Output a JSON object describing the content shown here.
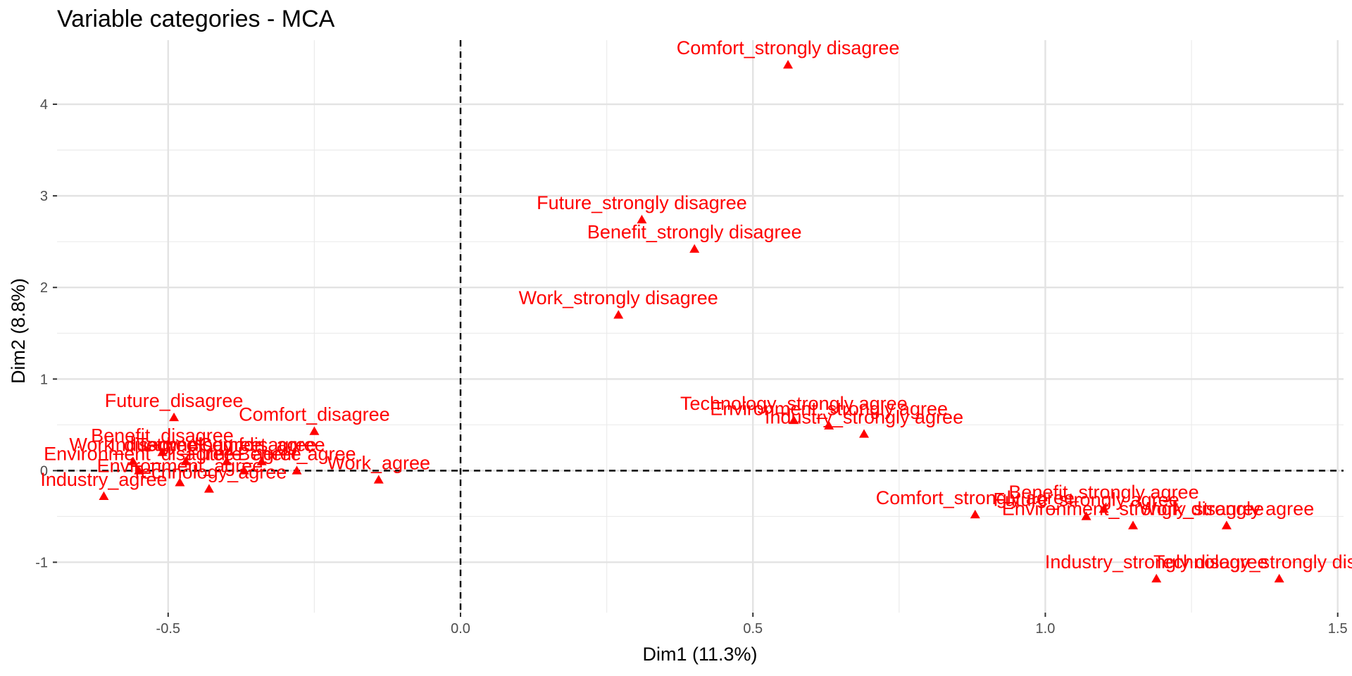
{
  "chart_data": {
    "type": "scatter",
    "title": "Variable categories - MCA",
    "xlabel": "Dim1 (11.3%)",
    "ylabel": "Dim2 (8.8%)",
    "xlim": [
      -0.69,
      1.51
    ],
    "ylim": [
      -1.55,
      4.7
    ],
    "x_major_ticks": [
      -0.5,
      0.0,
      0.5,
      1.0,
      1.5
    ],
    "x_tick_labels": [
      "-0.5",
      "0.0",
      "0.5",
      "1.0",
      "1.5"
    ],
    "x_minor_ticks": [
      -0.25,
      0.25,
      0.75,
      1.25
    ],
    "y_major_ticks": [
      -1,
      0,
      1,
      2,
      3,
      4
    ],
    "y_tick_labels": [
      "-1",
      "0",
      "1",
      "2",
      "3",
      "4"
    ],
    "y_minor_ticks": [
      -0.5,
      0.5,
      1.5,
      2.5,
      3.5
    ],
    "reference_lines": {
      "x": 0,
      "y": 0,
      "style": "dashed"
    },
    "marker": "triangle",
    "color": "#ff0000",
    "points": [
      {
        "label": "Comfort_strongly disagree",
        "x": 0.56,
        "y": 4.43
      },
      {
        "label": "Future_strongly disagree",
        "x": 0.31,
        "y": 2.74
      },
      {
        "label": "Benefit_strongly disagree",
        "x": 0.4,
        "y": 2.42
      },
      {
        "label": "Work_strongly disagree",
        "x": 0.27,
        "y": 1.7
      },
      {
        "label": "Future_disagree",
        "x": -0.49,
        "y": 0.58
      },
      {
        "label": "Comfort_disagree",
        "x": -0.25,
        "y": 0.43
      },
      {
        "label": "Benefit_disagree",
        "x": -0.51,
        "y": 0.2
      },
      {
        "label": "Work_disagree",
        "x": -0.56,
        "y": 0.1
      },
      {
        "label": "Industry_disagree",
        "x": -0.47,
        "y": 0.1
      },
      {
        "label": "Technology_disagree",
        "x": -0.4,
        "y": 0.1
      },
      {
        "label": "Comfort_agree",
        "x": -0.34,
        "y": 0.1
      },
      {
        "label": "Environment_disagree",
        "x": -0.55,
        "y": 0.0
      },
      {
        "label": "Future_agree",
        "x": -0.37,
        "y": 0.0
      },
      {
        "label": "Benefit_agree",
        "x": -0.28,
        "y": 0.0
      },
      {
        "label": "Work_agree",
        "x": -0.14,
        "y": -0.1
      },
      {
        "label": "Environment_agree",
        "x": -0.48,
        "y": -0.13
      },
      {
        "label": "Industry_agree",
        "x": -0.61,
        "y": -0.28
      },
      {
        "label": "Technology_agree",
        "x": -0.43,
        "y": -0.2
      },
      {
        "label": "Technology_strongly agree",
        "x": 0.57,
        "y": 0.55
      },
      {
        "label": "Environment_strongly agree",
        "x": 0.63,
        "y": 0.49
      },
      {
        "label": "Industry_strongly agree",
        "x": 0.69,
        "y": 0.4
      },
      {
        "label": "Comfort_strongly agree",
        "x": 0.88,
        "y": -0.48
      },
      {
        "label": "Benefit_strongly agree",
        "x": 1.1,
        "y": -0.42
      },
      {
        "label": "Future_strongly agree",
        "x": 1.07,
        "y": -0.5
      },
      {
        "label": "Environment_strongly disagree",
        "x": 1.15,
        "y": -0.6
      },
      {
        "label": "Work_strongly agree",
        "x": 1.31,
        "y": -0.6
      },
      {
        "label": "Industry_strongly disagree",
        "x": 1.19,
        "y": -1.18
      },
      {
        "label": "Technology_strongly disagree",
        "x": 1.4,
        "y": -1.18
      }
    ]
  }
}
